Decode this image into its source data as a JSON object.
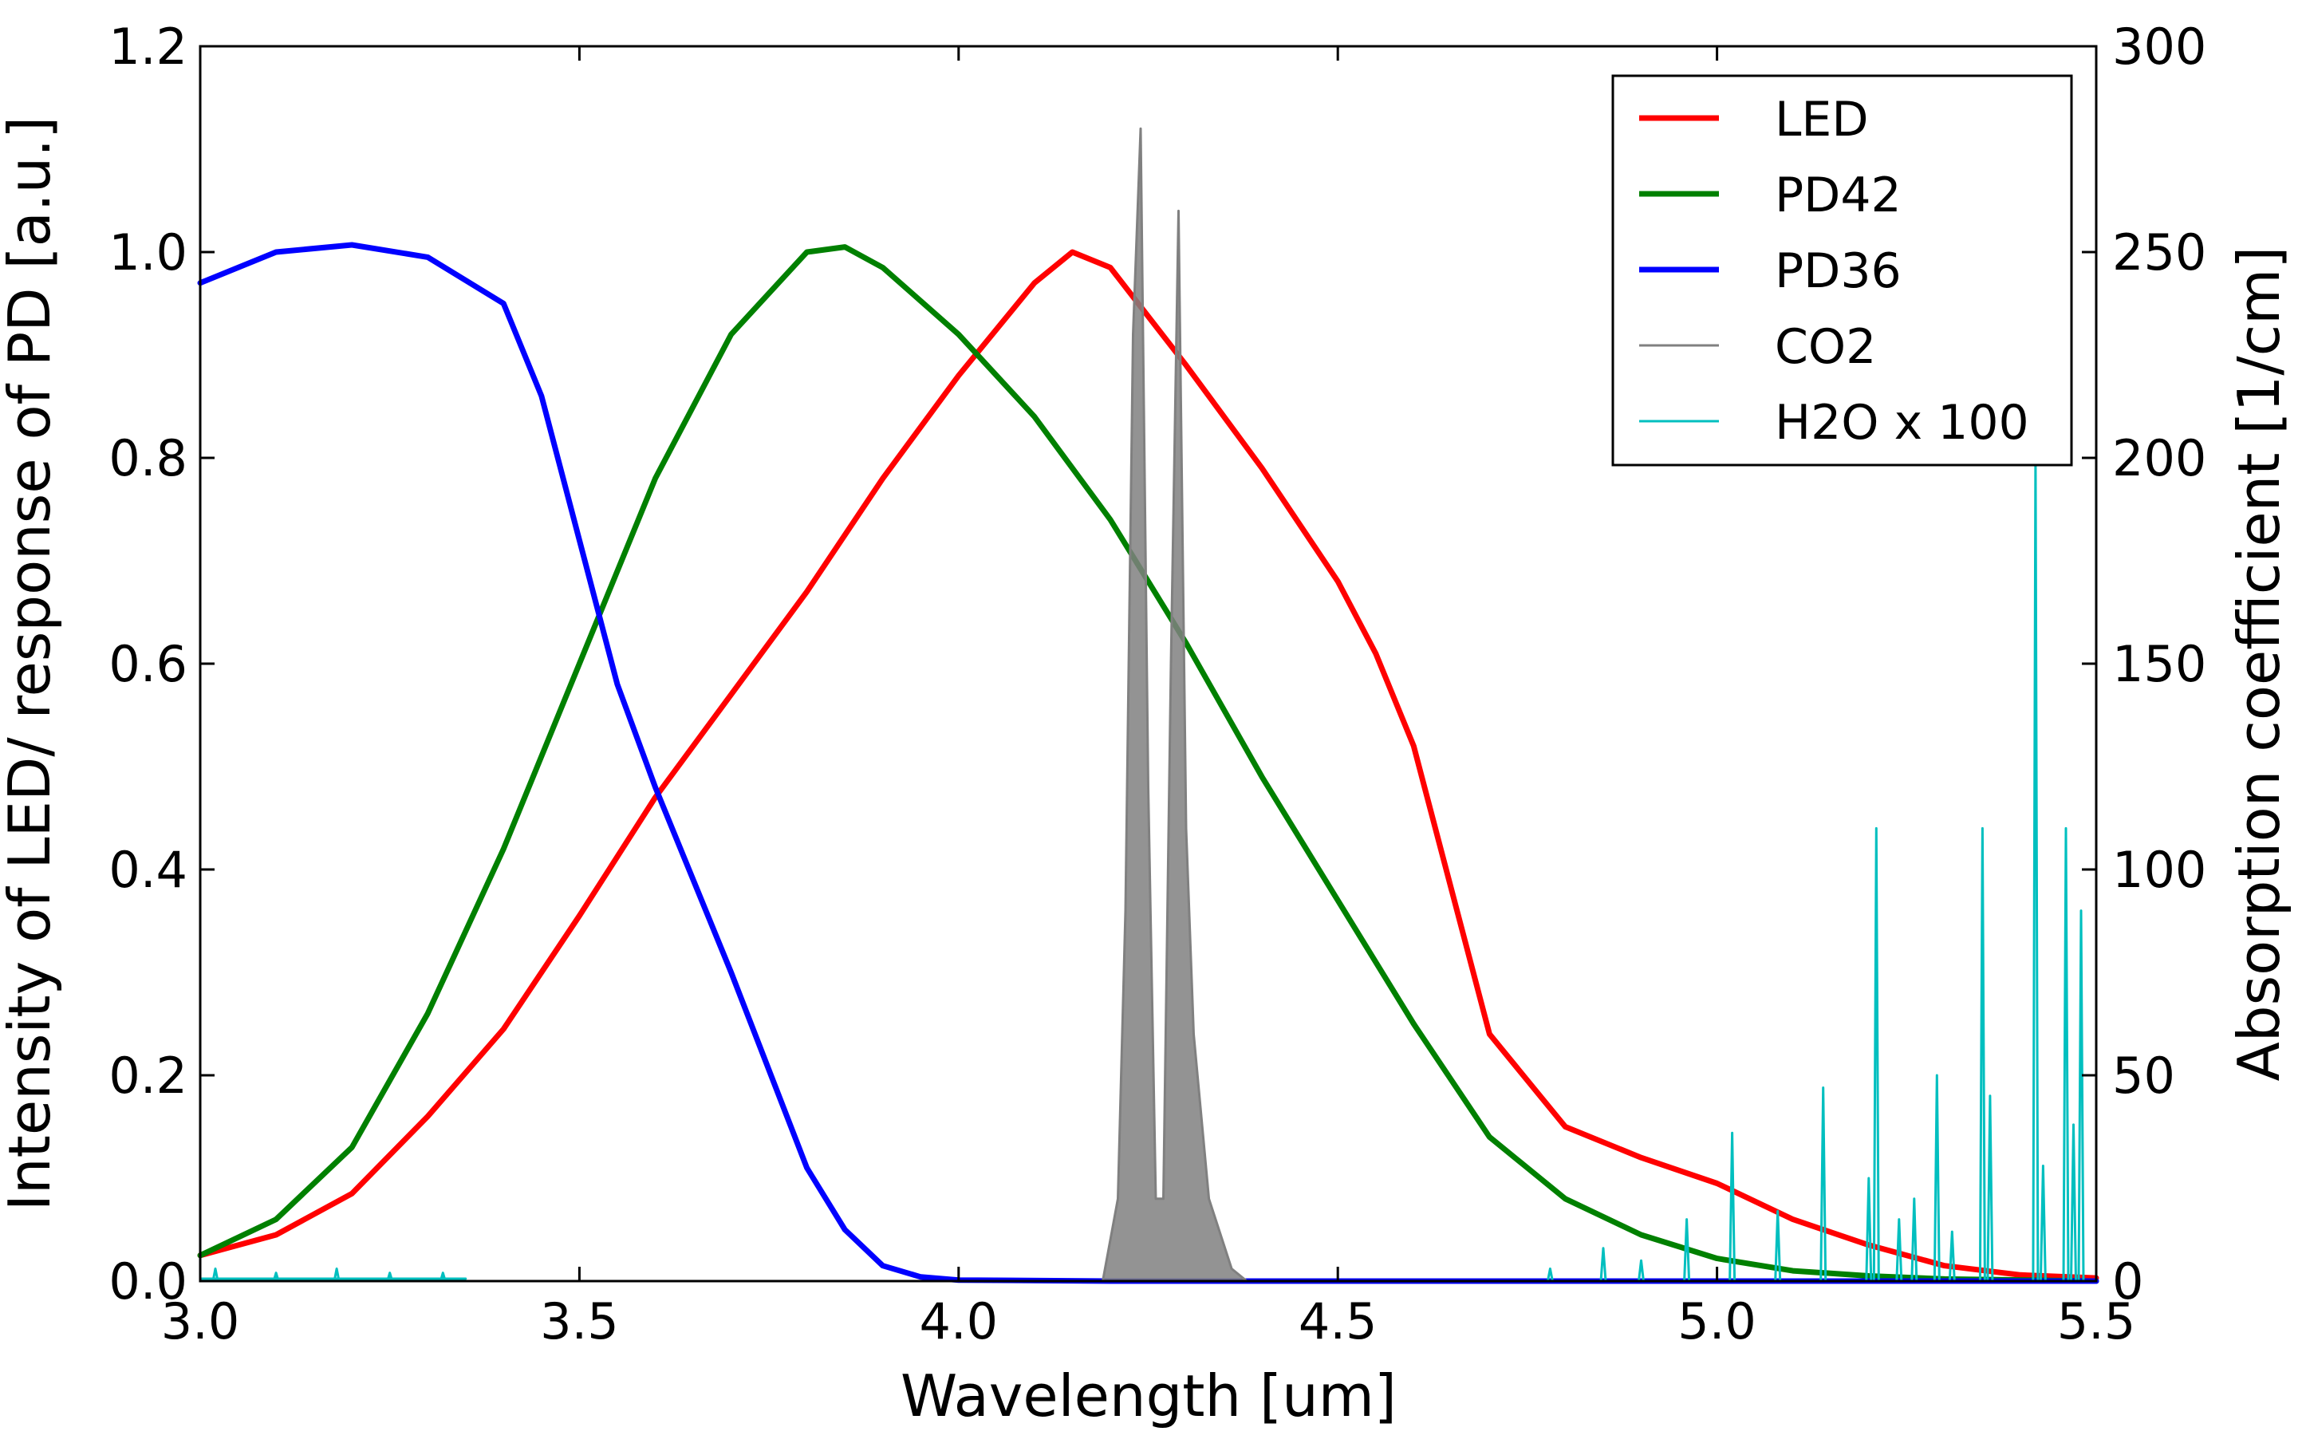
{
  "chart_data": {
    "type": "line",
    "title": "",
    "xlabel": "Wavelength [um]",
    "ylabel": "Intensity of LED/ response of PD [a.u.]",
    "y2label": "Absorption coefficient [1/cm]",
    "xlim": [
      3.0,
      5.5
    ],
    "ylim": [
      0.0,
      1.2
    ],
    "y2lim": [
      0,
      300
    ],
    "grid": false,
    "legend_position": "top-right",
    "x_ticks": [
      "3.0",
      "3.5",
      "4.0",
      "4.5",
      "5.0",
      "5.5"
    ],
    "y_ticks": [
      "0.0",
      "0.2",
      "0.4",
      "0.6",
      "0.8",
      "1.0",
      "1.2"
    ],
    "y2_ticks": [
      "0",
      "50",
      "100",
      "150",
      "200",
      "250",
      "300"
    ],
    "series": [
      {
        "name": "LED",
        "color": "#ff0000",
        "axis": "left",
        "style": "thick",
        "x": [
          3.0,
          3.1,
          3.2,
          3.3,
          3.4,
          3.5,
          3.6,
          3.7,
          3.8,
          3.9,
          4.0,
          4.1,
          4.15,
          4.2,
          4.3,
          4.4,
          4.5,
          4.55,
          4.6,
          4.7,
          4.8,
          4.9,
          5.0,
          5.1,
          5.2,
          5.3,
          5.4,
          5.5
        ],
        "y": [
          0.025,
          0.045,
          0.085,
          0.16,
          0.245,
          0.355,
          0.47,
          0.57,
          0.67,
          0.78,
          0.88,
          0.97,
          1.0,
          0.985,
          0.89,
          0.79,
          0.68,
          0.61,
          0.52,
          0.24,
          0.15,
          0.12,
          0.095,
          0.06,
          0.035,
          0.015,
          0.006,
          0.003
        ]
      },
      {
        "name": "PD42",
        "color": "#008000",
        "axis": "left",
        "style": "thick",
        "x": [
          3.0,
          3.1,
          3.2,
          3.3,
          3.4,
          3.5,
          3.6,
          3.7,
          3.8,
          3.85,
          3.9,
          4.0,
          4.1,
          4.2,
          4.3,
          4.4,
          4.5,
          4.6,
          4.7,
          4.8,
          4.9,
          5.0,
          5.1,
          5.2,
          5.3,
          5.5
        ],
        "y": [
          0.025,
          0.06,
          0.13,
          0.26,
          0.42,
          0.6,
          0.78,
          0.92,
          1.0,
          1.005,
          0.985,
          0.92,
          0.84,
          0.74,
          0.62,
          0.49,
          0.37,
          0.25,
          0.14,
          0.08,
          0.045,
          0.022,
          0.01,
          0.005,
          0.002,
          0.0
        ]
      },
      {
        "name": "PD36",
        "color": "#0000ff",
        "axis": "left",
        "style": "thick",
        "x": [
          3.0,
          3.1,
          3.2,
          3.3,
          3.4,
          3.45,
          3.5,
          3.55,
          3.6,
          3.7,
          3.8,
          3.85,
          3.9,
          3.95,
          4.0,
          4.2,
          4.5,
          5.0,
          5.5
        ],
        "y": [
          0.97,
          1.0,
          1.007,
          0.995,
          0.95,
          0.86,
          0.72,
          0.58,
          0.48,
          0.3,
          0.11,
          0.05,
          0.015,
          0.004,
          0.001,
          0.0,
          0.0,
          0.0,
          0.0
        ]
      },
      {
        "name": "CO2",
        "color": "#808080",
        "axis": "right",
        "style": "thin",
        "x": [
          4.19,
          4.21,
          4.22,
          4.23,
          4.24,
          4.25,
          4.26,
          4.27,
          4.28,
          4.29,
          4.3,
          4.31,
          4.33,
          4.36,
          4.38
        ],
        "y": [
          0,
          20,
          90,
          230,
          280,
          120,
          20,
          20,
          150,
          260,
          110,
          60,
          20,
          3,
          0
        ]
      },
      {
        "name": "H2O x 100",
        "color": "#00bfbf",
        "axis": "right",
        "style": "thin",
        "x": [
          3.02,
          3.1,
          3.18,
          3.25,
          3.32,
          4.78,
          4.85,
          4.9,
          4.96,
          5.02,
          5.08,
          5.14,
          5.2,
          5.21,
          5.24,
          5.26,
          5.29,
          5.31,
          5.35,
          5.36,
          5.42,
          5.43,
          5.46,
          5.47,
          5.48
        ],
        "y": [
          3,
          2,
          3,
          2,
          2,
          3,
          8,
          5,
          15,
          36,
          17,
          47,
          25,
          110,
          15,
          20,
          50,
          12,
          110,
          45,
          200,
          28,
          110,
          38,
          90
        ]
      }
    ]
  }
}
